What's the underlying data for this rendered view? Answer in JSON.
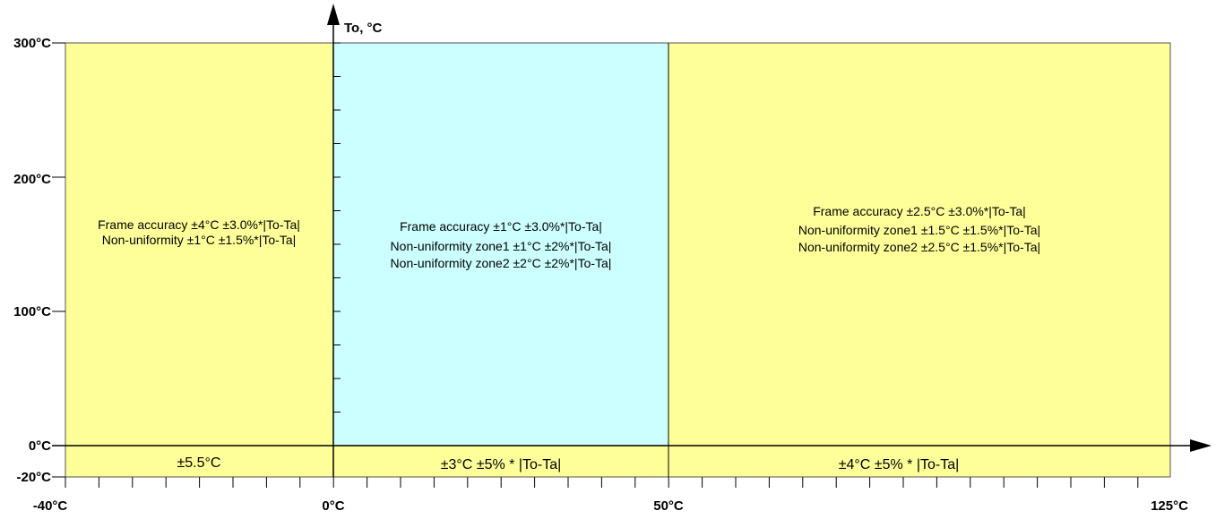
{
  "colors": {
    "yellow_zone": "#ffff99",
    "blue_zone": "#ccffff",
    "border": "#555555",
    "axis": "#000000"
  },
  "axes": {
    "y_title": "To, °C",
    "x_ticks": [
      "-40°C",
      "0°C",
      "50°C",
      "125°C"
    ],
    "y_ticks": [
      "300°C",
      "200°C",
      "100°C",
      "0°C",
      "-20°C"
    ]
  },
  "zones": {
    "left": {
      "lines": [
        "Frame accuracy ±4°C ±3.0%*|To-Ta|",
        "Non-uniformity ±1°C ±1.5%*|To-Ta|"
      ],
      "bottom": "±5.5°C"
    },
    "middle": {
      "lines": [
        "Frame accuracy ±1°C ±3.0%*|To-Ta|",
        "Non-uniformity zone1 ±1°C ±2%*|To-Ta|",
        "Non-uniformity zone2  ±2°C ±2%*|To-Ta|"
      ],
      "bottom": "±3°C ±5% * |To-Ta|"
    },
    "right": {
      "lines": [
        "Frame accuracy ±2.5°C ±3.0%*|To-Ta|",
        "Non-uniformity zone1  ±1.5°C ±1.5%*|To-Ta|",
        "Non-uniformity zone2  ±2.5°C ±1.5%*|To-Ta|"
      ],
      "bottom": "±4°C ±5% * |To-Ta|"
    }
  }
}
